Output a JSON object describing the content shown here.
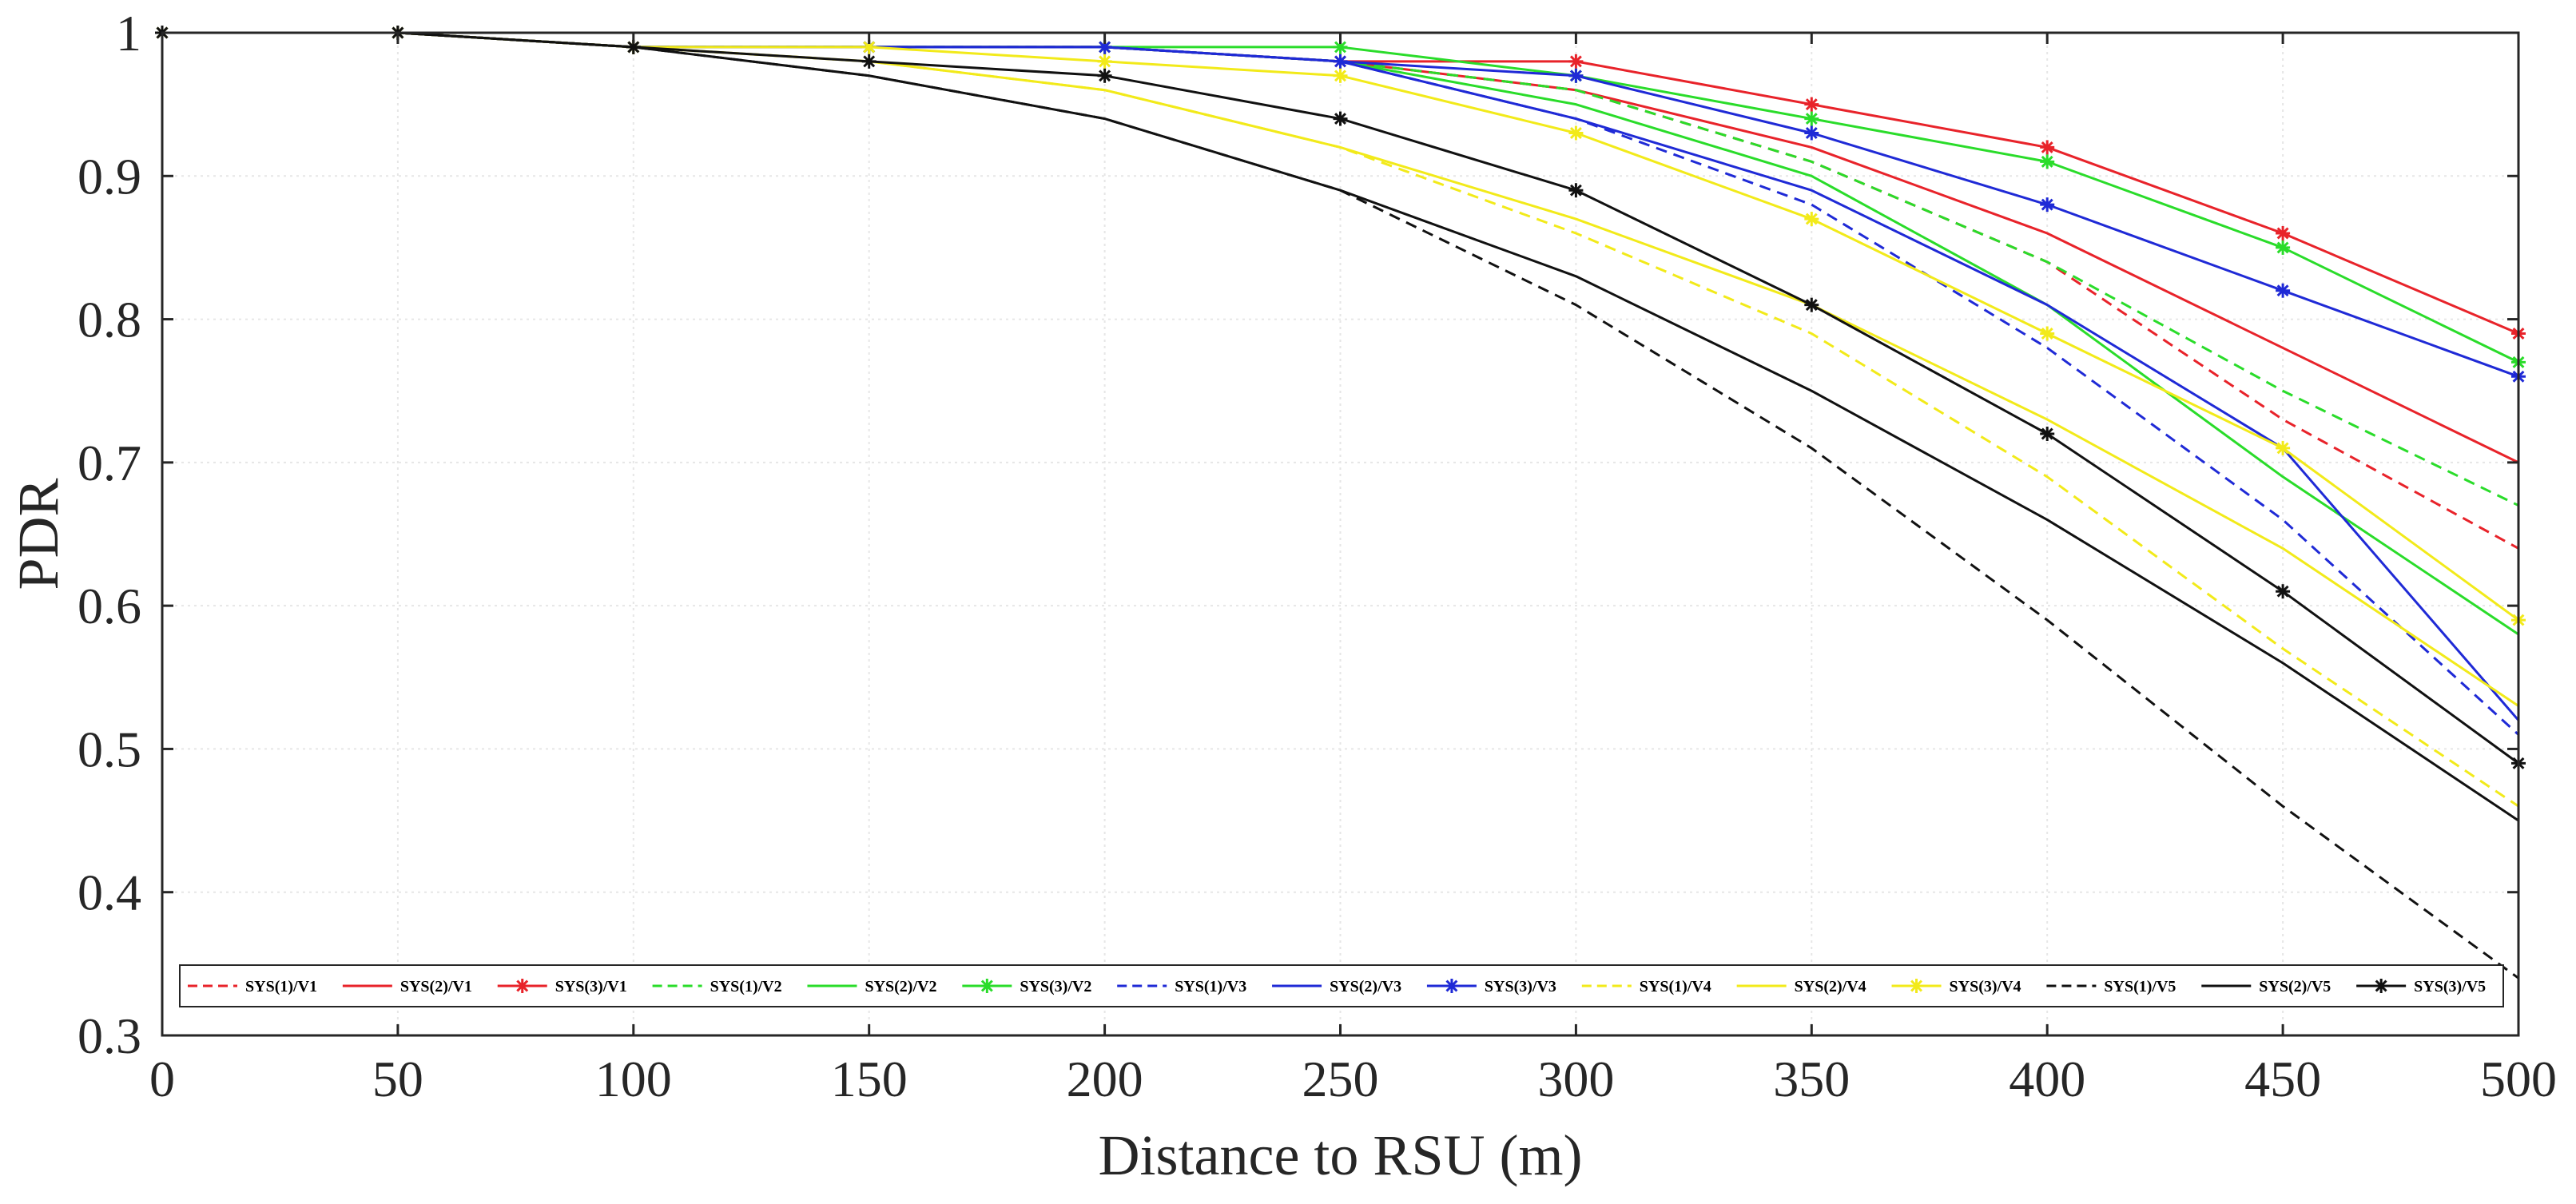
{
  "chart_data": {
    "type": "line",
    "title": "",
    "xlabel": "Distance to RSU (m)",
    "ylabel": "PDR",
    "xlim": [
      0,
      500
    ],
    "ylim": [
      0.3,
      1.0
    ],
    "grid": true,
    "legend_position": "bottom",
    "x": [
      0,
      50,
      100,
      150,
      200,
      250,
      300,
      350,
      400,
      450,
      500
    ],
    "x_ticks": [
      "0",
      "50",
      "100",
      "150",
      "200",
      "250",
      "300",
      "350",
      "400",
      "450",
      "500"
    ],
    "y_ticks": [
      "0.3",
      "0.4",
      "0.5",
      "0.6",
      "0.7",
      "0.8",
      "0.9",
      "1"
    ],
    "y_tick_values": [
      0.3,
      0.4,
      0.5,
      0.6,
      0.7,
      0.8,
      0.9,
      1.0
    ],
    "series": [
      {
        "name": "SYS(1)/V1",
        "color": "#e8232a",
        "style": "dashed",
        "marker": false,
        "values": [
          1.0,
          1.0,
          0.99,
          0.99,
          0.99,
          0.98,
          0.96,
          0.91,
          0.84,
          0.73,
          0.64
        ]
      },
      {
        "name": "SYS(2)/V1",
        "color": "#e8232a",
        "style": "solid",
        "marker": false,
        "values": [
          1.0,
          1.0,
          0.99,
          0.99,
          0.99,
          0.98,
          0.96,
          0.92,
          0.86,
          0.78,
          0.7
        ]
      },
      {
        "name": "SYS(3)/V1",
        "color": "#e8232a",
        "style": "solid",
        "marker": true,
        "values": [
          1.0,
          1.0,
          0.99,
          0.99,
          0.99,
          0.98,
          0.98,
          0.95,
          0.92,
          0.86,
          0.79
        ]
      },
      {
        "name": "SYS(1)/V2",
        "color": "#2adc2a",
        "style": "dashed",
        "marker": false,
        "values": [
          1.0,
          1.0,
          0.99,
          0.99,
          0.99,
          0.98,
          0.96,
          0.91,
          0.84,
          0.75,
          0.67
        ]
      },
      {
        "name": "SYS(2)/V2",
        "color": "#2adc2a",
        "style": "solid",
        "marker": false,
        "values": [
          1.0,
          1.0,
          0.99,
          0.99,
          0.99,
          0.98,
          0.95,
          0.9,
          0.81,
          0.69,
          0.58
        ]
      },
      {
        "name": "SYS(3)/V2",
        "color": "#2adc2a",
        "style": "solid",
        "marker": true,
        "values": [
          1.0,
          1.0,
          0.99,
          0.99,
          0.99,
          0.99,
          0.97,
          0.94,
          0.91,
          0.85,
          0.77
        ]
      },
      {
        "name": "SYS(1)/V3",
        "color": "#1f2ad6",
        "style": "dashed",
        "marker": false,
        "values": [
          1.0,
          1.0,
          0.99,
          0.99,
          0.99,
          0.98,
          0.94,
          0.88,
          0.78,
          0.66,
          0.51
        ]
      },
      {
        "name": "SYS(2)/V3",
        "color": "#1f2ad6",
        "style": "solid",
        "marker": false,
        "values": [
          1.0,
          1.0,
          0.99,
          0.99,
          0.99,
          0.98,
          0.94,
          0.89,
          0.81,
          0.71,
          0.52
        ]
      },
      {
        "name": "SYS(3)/V3",
        "color": "#1f2ad6",
        "style": "solid",
        "marker": true,
        "values": [
          1.0,
          1.0,
          0.99,
          0.99,
          0.99,
          0.98,
          0.97,
          0.93,
          0.88,
          0.82,
          0.76
        ]
      },
      {
        "name": "SYS(1)/V4",
        "color": "#f2ea1a",
        "style": "dashed",
        "marker": false,
        "values": [
          1.0,
          1.0,
          0.99,
          0.98,
          0.96,
          0.92,
          0.86,
          0.79,
          0.69,
          0.57,
          0.46
        ]
      },
      {
        "name": "SYS(2)/V4",
        "color": "#f2ea1a",
        "style": "solid",
        "marker": false,
        "values": [
          1.0,
          1.0,
          0.99,
          0.98,
          0.96,
          0.92,
          0.87,
          0.81,
          0.73,
          0.64,
          0.53
        ]
      },
      {
        "name": "SYS(3)/V4",
        "color": "#f2ea1a",
        "style": "solid",
        "marker": true,
        "values": [
          1.0,
          1.0,
          0.99,
          0.99,
          0.98,
          0.97,
          0.93,
          0.87,
          0.79,
          0.71,
          0.59
        ]
      },
      {
        "name": "SYS(1)/V5",
        "color": "#111111",
        "style": "dashed",
        "marker": false,
        "values": [
          1.0,
          1.0,
          0.99,
          0.97,
          0.94,
          0.89,
          0.81,
          0.71,
          0.59,
          0.46,
          0.34
        ]
      },
      {
        "name": "SYS(2)/V5",
        "color": "#111111",
        "style": "solid",
        "marker": false,
        "values": [
          1.0,
          1.0,
          0.99,
          0.97,
          0.94,
          0.89,
          0.83,
          0.75,
          0.66,
          0.56,
          0.45
        ]
      },
      {
        "name": "SYS(3)/V5",
        "color": "#111111",
        "style": "solid",
        "marker": true,
        "values": [
          1.0,
          1.0,
          0.99,
          0.98,
          0.97,
          0.94,
          0.89,
          0.81,
          0.72,
          0.61,
          0.49
        ]
      }
    ]
  }
}
